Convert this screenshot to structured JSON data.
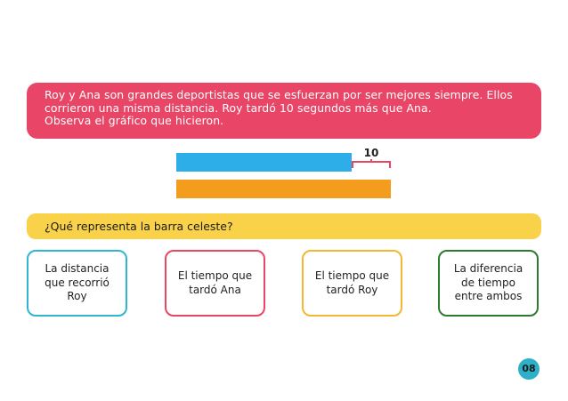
{
  "statement": {
    "lines": [
      "Roy y Ana son grandes deportistas que se esfuerzan por ser mejores siempre. Ellos",
      "corrieron una misma distancia. Roy tardó 10 segundos más que Ana.",
      "Observa el gráfico que hicieron."
    ]
  },
  "chart_data": {
    "type": "bar",
    "orientation": "horizontal",
    "categories": [
      "",
      ""
    ],
    "values": [
      null,
      null
    ],
    "annotations": [
      {
        "text": "10",
        "note": "bracket over the difference between both bars"
      }
    ],
    "colors": [
      "#2eaee8",
      "#f39c1e"
    ]
  },
  "diagram": {
    "difference_label": "10"
  },
  "question": {
    "text": "¿Qué representa la barra celeste?"
  },
  "options": [
    {
      "text": "La distancia que recorrió Roy",
      "color": "#2eb7d1"
    },
    {
      "text": "El tiempo que tardó Ana",
      "color": "#e94566"
    },
    {
      "text": "El tiempo que tardó Roy",
      "color": "#f4b731"
    },
    {
      "text": "La diferencia de tiempo entre ambos",
      "color": "#2d7a30"
    }
  ],
  "page": {
    "number": "08",
    "badge_color": "#2eb0c9"
  }
}
